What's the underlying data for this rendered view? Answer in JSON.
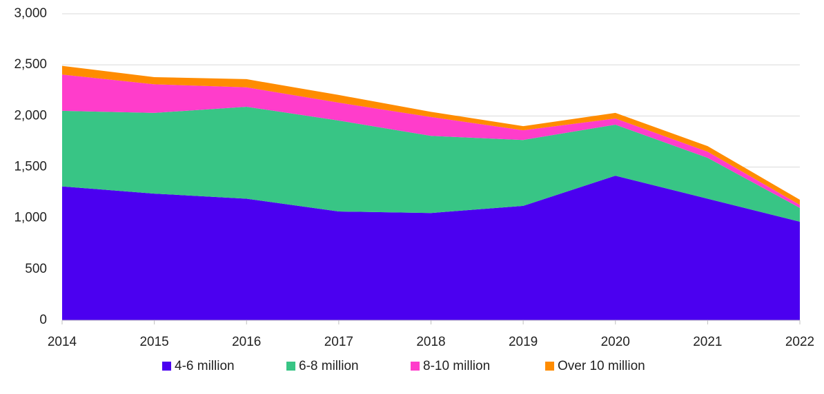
{
  "chart_data": {
    "type": "stacked_area",
    "x": [
      2014,
      2015,
      2016,
      2017,
      2018,
      2019,
      2020,
      2021,
      2022
    ],
    "xlim": [
      2014,
      2022
    ],
    "xticks": [
      2014,
      2015,
      2016,
      2017,
      2018,
      2019,
      2020,
      2021,
      2022
    ],
    "ylim": [
      0,
      3000
    ],
    "yticks": [
      0,
      500,
      {
        "value": 1000,
        "label": "1,000"
      },
      {
        "value": 1500,
        "label": "1,500"
      },
      {
        "value": 2000,
        "label": "2,000"
      },
      {
        "value": 2500,
        "label": "2,500"
      },
      {
        "value": 3000,
        "label": "3,000"
      }
    ],
    "grid": true,
    "legend": "bottom",
    "series": [
      {
        "name": "4-6 million",
        "color": "#4b00f0",
        "values": [
          1310,
          1240,
          1190,
          1065,
          1050,
          1120,
          1415,
          1190,
          965
        ]
      },
      {
        "name": "6-8 million",
        "color": "#38c585",
        "values": [
          740,
          790,
          900,
          890,
          755,
          645,
          500,
          400,
          135
        ]
      },
      {
        "name": "8-10 million",
        "color": "#ff3dcb",
        "values": [
          355,
          280,
          190,
          175,
          185,
          95,
          60,
          60,
          30
        ]
      },
      {
        "name": "Over 10 million",
        "color": "#ff8c00",
        "values": [
          85,
          70,
          80,
          75,
          50,
          40,
          55,
          55,
          50
        ]
      }
    ]
  }
}
